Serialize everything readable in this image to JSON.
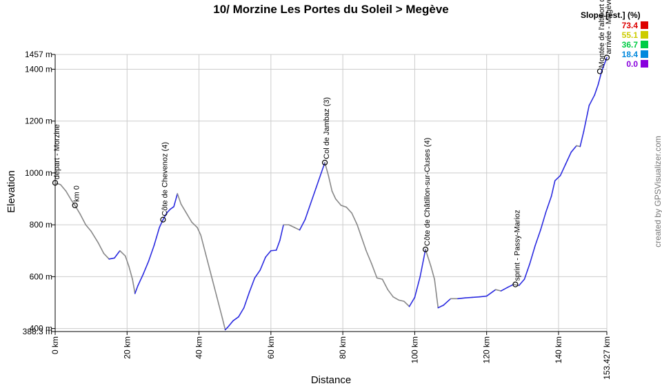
{
  "chart_data": {
    "type": "area",
    "title": "10/ Morzine Les Portes du Soleil > Megève",
    "xlabel": "Distance",
    "ylabel": "Elevation",
    "xlim": [
      0,
      153.427
    ],
    "ylim": [
      388.3,
      1457
    ],
    "x_ticks": [
      {
        "v": 0,
        "label": "0 km"
      },
      {
        "v": 20,
        "label": "20 km"
      },
      {
        "v": 40,
        "label": "40 km"
      },
      {
        "v": 60,
        "label": "60 km"
      },
      {
        "v": 80,
        "label": "80 km"
      },
      {
        "v": 100,
        "label": "100 km"
      },
      {
        "v": 120,
        "label": "120 km"
      },
      {
        "v": 140,
        "label": "140 km"
      },
      {
        "v": 153.427,
        "label": "153.427 km"
      }
    ],
    "y_ticks": [
      {
        "v": 388.3,
        "label": "388.3 m"
      },
      {
        "v": 400,
        "label": "400 m"
      },
      {
        "v": 600,
        "label": "600 m"
      },
      {
        "v": 800,
        "label": "800 m"
      },
      {
        "v": 1000,
        "label": "1000 m"
      },
      {
        "v": 1200,
        "label": "1200 m"
      },
      {
        "v": 1400,
        "label": "1400 m"
      },
      {
        "v": 1457,
        "label": "1457 m"
      }
    ],
    "grid": true,
    "profile": [
      [
        0,
        962
      ],
      [
        1.5,
        955
      ],
      [
        3,
        930
      ],
      [
        4.5,
        895
      ],
      [
        5.5,
        875
      ],
      [
        7,
        840
      ],
      [
        8.5,
        800
      ],
      [
        10,
        775
      ],
      [
        12,
        730
      ],
      [
        13.5,
        690
      ],
      [
        15,
        668
      ],
      [
        16.5,
        672
      ],
      [
        18,
        700
      ],
      [
        19.5,
        680
      ],
      [
        20.5,
        640
      ],
      [
        21.5,
        590
      ],
      [
        22.2,
        535
      ],
      [
        23,
        565
      ],
      [
        24.5,
        610
      ],
      [
        26,
        660
      ],
      [
        27.5,
        720
      ],
      [
        29,
        790
      ],
      [
        30,
        820
      ],
      [
        31,
        845
      ],
      [
        32,
        860
      ],
      [
        33,
        870
      ],
      [
        34,
        920
      ],
      [
        35,
        880
      ],
      [
        36.5,
        845
      ],
      [
        38,
        810
      ],
      [
        39.5,
        790
      ],
      [
        40.5,
        760
      ],
      [
        42,
        680
      ],
      [
        43.5,
        600
      ],
      [
        45,
        520
      ],
      [
        46.5,
        440
      ],
      [
        47.3,
        395
      ],
      [
        48,
        405
      ],
      [
        49.5,
        430
      ],
      [
        51,
        445
      ],
      [
        52.5,
        480
      ],
      [
        54,
        540
      ],
      [
        55.5,
        595
      ],
      [
        57,
        625
      ],
      [
        58.5,
        675
      ],
      [
        60,
        700
      ],
      [
        61.5,
        702
      ],
      [
        62.5,
        740
      ],
      [
        63.5,
        800
      ],
      [
        65,
        800
      ],
      [
        66.5,
        790
      ],
      [
        68,
        780
      ],
      [
        69.5,
        820
      ],
      [
        71,
        880
      ],
      [
        72.5,
        940
      ],
      [
        74,
        1000
      ],
      [
        75,
        1040
      ],
      [
        76,
        990
      ],
      [
        77,
        930
      ],
      [
        78,
        900
      ],
      [
        79.5,
        875
      ],
      [
        81,
        868
      ],
      [
        82.5,
        845
      ],
      [
        84,
        800
      ],
      [
        85,
        760
      ],
      [
        86.5,
        700
      ],
      [
        88,
        650
      ],
      [
        89.5,
        595
      ],
      [
        91,
        590
      ],
      [
        92.5,
        550
      ],
      [
        94,
        522
      ],
      [
        95.5,
        510
      ],
      [
        97,
        505
      ],
      [
        98.5,
        485
      ],
      [
        100,
        520
      ],
      [
        101.5,
        600
      ],
      [
        103,
        705
      ],
      [
        104.5,
        640
      ],
      [
        105.5,
        590
      ],
      [
        106.5,
        480
      ],
      [
        108,
        490
      ],
      [
        110,
        515
      ],
      [
        112,
        515
      ],
      [
        114,
        518
      ],
      [
        116,
        520
      ],
      [
        118,
        522
      ],
      [
        120,
        525
      ],
      [
        121.5,
        540
      ],
      [
        122.5,
        550
      ],
      [
        124,
        545
      ],
      [
        126,
        560
      ],
      [
        127.5,
        570
      ],
      [
        129,
        566
      ],
      [
        130.5,
        590
      ],
      [
        132,
        650
      ],
      [
        133.5,
        720
      ],
      [
        135,
        780
      ],
      [
        136.5,
        850
      ],
      [
        138,
        910
      ],
      [
        139,
        970
      ],
      [
        140.5,
        990
      ],
      [
        142,
        1035
      ],
      [
        143.5,
        1080
      ],
      [
        145,
        1105
      ],
      [
        146,
        1102
      ],
      [
        147,
        1160
      ],
      [
        148.5,
        1260
      ],
      [
        150,
        1300
      ],
      [
        151,
        1340
      ],
      [
        152,
        1392
      ],
      [
        153.427,
        1445
      ]
    ],
    "waypoints": [
      {
        "label": "départ - Morzine",
        "x": 0,
        "y": 962
      },
      {
        "label": "km 0",
        "x": 5.5,
        "y": 875
      },
      {
        "label": "Côte de Chevenoz (4)",
        "x": 30,
        "y": 820
      },
      {
        "label": "Col de Jambaz (3)",
        "x": 75,
        "y": 1040
      },
      {
        "label": "Côte de Châtillon-sur-Cluses (4)",
        "x": 103,
        "y": 705
      },
      {
        "label": "sprint - Passy-Marioz",
        "x": 128,
        "y": 570
      },
      {
        "label": "Montée de l'altiport de Megève",
        "x": 151.5,
        "y": 1392
      },
      {
        "label": "arrivée - Megève",
        "x": 153.427,
        "y": 1445
      }
    ],
    "legend": {
      "title": "Slope [est.] (%)",
      "placement": "top-right",
      "items": [
        {
          "label": "73.4",
          "color": "#dd0000"
        },
        {
          "label": "55.1",
          "color": "#cccc00"
        },
        {
          "label": "36.7",
          "color": "#00cc44"
        },
        {
          "label": "18.4",
          "color": "#0088dd"
        },
        {
          "label": "0.0",
          "color": "#8800dd"
        }
      ]
    },
    "colors": {
      "line_flat": "#888888",
      "line_up": "#2a2ae0",
      "grid": "#cccccc",
      "axis": "#000000"
    }
  },
  "credit": "created by GPSVisualizer.com"
}
